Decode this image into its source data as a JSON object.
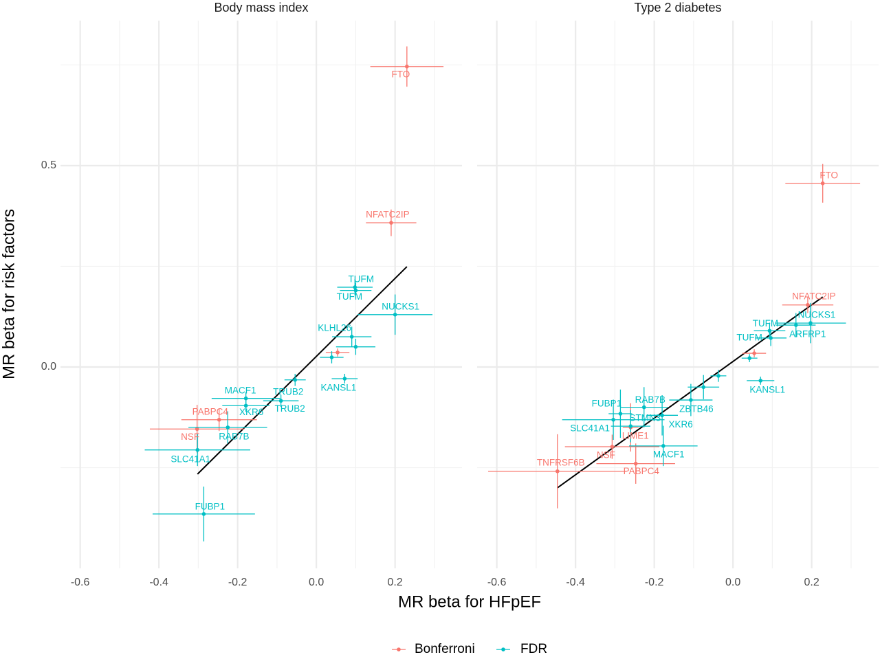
{
  "xlabel": "MR beta for HFpEF",
  "ylabel": "MR beta for risk factors",
  "chart_data": [
    {
      "type": "scatter",
      "title": "Body mass index",
      "xlim": [
        -0.65,
        0.37
      ],
      "ylim": [
        -0.5,
        0.86
      ],
      "xticks": [
        -0.6,
        -0.4,
        -0.2,
        {
          "value": 0,
          "label": "0.0"
        },
        0.2
      ],
      "xminor": [
        -0.5,
        -0.3,
        -0.1,
        0.1,
        0.3
      ],
      "yticks": [
        {
          "value": 0,
          "label": "0.0"
        },
        0.5
      ],
      "yminor": [
        -0.25,
        0.25,
        0.75
      ],
      "fit": {
        "color": "#000000",
        "x": [
          -0.302,
          0.23
        ],
        "y": [
          -0.266,
          0.249
        ]
      },
      "series": [
        {
          "name": "Bonferroni",
          "color": "#F8766D",
          "labels": [
            "FTO",
            "NFATC2IP",
            "PABPC4",
            "NSF",
            null
          ],
          "x": [
            0.23,
            0.19,
            -0.247,
            -0.303,
            0.054
          ],
          "values": [
            0.746,
            0.358,
            -0.131,
            -0.154,
            0.036
          ],
          "xerr": [
            0.093,
            0.064,
            0.096,
            0.12,
            0.03
          ],
          "yerr": [
            0.05,
            0.033,
            0.028,
            0.06,
            0.01
          ]
        },
        {
          "name": "FDR",
          "color": "#00BFC4",
          "labels": [
            "TUFM",
            "TUFM",
            "NUCKS1",
            "KLHL26",
            null,
            null,
            "KANSL1",
            "TRUB2",
            "TRUB2",
            "MACF1",
            "XKR6",
            "RAB7B",
            "SLC41A1",
            "FUBP1"
          ],
          "x": [
            0.098,
            0.1,
            0.2,
            0.09,
            0.1,
            0.039,
            0.072,
            -0.054,
            -0.09,
            -0.179,
            -0.179,
            -0.225,
            -0.302,
            -0.286
          ],
          "values": [
            0.198,
            0.19,
            0.13,
            0.075,
            0.05,
            0.024,
            -0.029,
            -0.032,
            -0.084,
            -0.078,
            -0.096,
            -0.15,
            -0.206,
            -0.365
          ],
          "xerr": [
            0.045,
            0.04,
            0.095,
            0.05,
            0.05,
            0.03,
            0.033,
            0.027,
            0.045,
            0.087,
            0.06,
            0.1,
            0.134,
            0.13
          ],
          "yerr": [
            0.02,
            0.02,
            0.05,
            0.025,
            0.02,
            0.015,
            0.012,
            0.015,
            0.015,
            0.015,
            0.015,
            0.04,
            0.04,
            0.068
          ]
        }
      ]
    },
    {
      "type": "scatter",
      "title": "Type 2 diabetes",
      "xlim": [
        -0.65,
        0.37
      ],
      "ylim": [
        -0.5,
        0.86
      ],
      "xticks": [
        -0.6,
        -0.4,
        -0.2,
        {
          "value": 0,
          "label": "0.0"
        },
        0.2
      ],
      "xminor": [
        -0.5,
        -0.3,
        -0.1,
        0.1,
        0.3
      ],
      "yticks": [
        {
          "value": 0,
          "label": "0.0"
        },
        0.5
      ],
      "yminor": [
        -0.25,
        0.25,
        0.75
      ],
      "fit": {
        "color": "#000000",
        "x": [
          -0.446,
          0.228
        ],
        "y": [
          -0.3,
          0.174
        ]
      },
      "series": [
        {
          "name": "Bonferroni",
          "color": "#F8766D",
          "labels": [
            "FTO",
            "NFATC2IP",
            "TNFRSF6B",
            "NSF",
            "PABPC4",
            "LIME1",
            null
          ],
          "x": [
            0.228,
            0.19,
            -0.446,
            -0.307,
            -0.247,
            -0.26,
            0.054
          ],
          "values": [
            0.456,
            0.154,
            -0.259,
            -0.198,
            -0.24,
            -0.15,
            0.034
          ],
          "xerr": [
            0.095,
            0.065,
            0.176,
            0.12,
            0.1,
            0.02,
            0.03
          ],
          "yerr": [
            0.048,
            0.02,
            0.092,
            0.03,
            0.05,
            0.06,
            0.01
          ]
        },
        {
          "name": "FDR",
          "color": "#00BFC4",
          "labels": [
            "NUCKS1",
            "ARFRP1",
            "TUFM",
            "TUFM",
            "KANSL1",
            "ZBTB46",
            "RAB7B",
            "FUBP1",
            "STMN3",
            "SLC41A1",
            "XKR6",
            "MACF1",
            null,
            null,
            null
          ],
          "x": [
            0.197,
            0.16,
            0.093,
            0.096,
            0.07,
            -0.107,
            -0.226,
            -0.286,
            -0.26,
            -0.304,
            -0.18,
            -0.177,
            -0.075,
            -0.037,
            0.042
          ],
          "values": [
            0.109,
            0.104,
            0.09,
            0.072,
            -0.034,
            -0.082,
            -0.1,
            -0.116,
            -0.147,
            -0.131,
            -0.12,
            -0.196,
            -0.05,
            -0.022,
            0.022
          ],
          "xerr": [
            0.09,
            0.05,
            0.04,
            0.04,
            0.035,
            0.055,
            0.06,
            0.03,
            0.05,
            0.13,
            0.04,
            0.087,
            0.04,
            0.02,
            0.02
          ],
          "yerr": [
            0.05,
            0.03,
            0.02,
            0.02,
            0.01,
            0.04,
            0.05,
            0.06,
            0.04,
            0.05,
            0.05,
            0.05,
            0.03,
            0.015,
            0.01
          ]
        }
      ]
    }
  ]
}
